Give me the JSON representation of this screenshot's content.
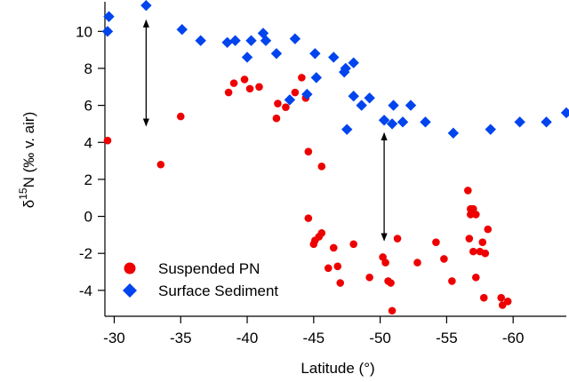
{
  "chart_data": {
    "type": "scatter",
    "title": "",
    "xlabel": "Latitude (°)",
    "ylabel": {
      "prefix": "δ",
      "superscript": "15",
      "suffix": "N (‰ v. air)"
    },
    "xlim": [
      -29.3,
      -64
    ],
    "ylim": [
      -5.4,
      11.6
    ],
    "x_ticks": [
      -30,
      -35,
      -40,
      -45,
      -50,
      -55,
      -60
    ],
    "x_tick_labels": [
      "-30",
      "-35",
      "-40",
      "-45",
      "-50",
      "-55",
      "-60"
    ],
    "y_ticks": [
      -4,
      -2,
      0,
      2,
      4,
      6,
      8,
      10
    ],
    "y_tick_labels": [
      "-4",
      "-2",
      "0",
      "2",
      "4",
      "6",
      "8",
      "10"
    ],
    "grid": false,
    "legend_position": "bottom-left",
    "series": [
      {
        "name": "Suspended PN",
        "marker": "circle",
        "color": "#ee0000",
        "points": [
          [
            -29.5,
            4.1
          ],
          [
            -33.5,
            2.8
          ],
          [
            -35.0,
            5.4
          ],
          [
            -38.6,
            6.7
          ],
          [
            -39.0,
            7.2
          ],
          [
            -39.8,
            7.4
          ],
          [
            -40.2,
            6.9
          ],
          [
            -40.9,
            7.0
          ],
          [
            -42.2,
            5.3
          ],
          [
            -42.3,
            6.1
          ],
          [
            -42.9,
            5.9
          ],
          [
            -43.6,
            6.7
          ],
          [
            -44.1,
            7.5
          ],
          [
            -44.4,
            6.4
          ],
          [
            -44.6,
            3.5
          ],
          [
            -44.6,
            -0.1
          ],
          [
            -45.6,
            2.7
          ],
          [
            -45.0,
            -1.5
          ],
          [
            -45.1,
            -1.3
          ],
          [
            -45.4,
            -1.1
          ],
          [
            -45.6,
            -0.9
          ],
          [
            -46.1,
            -2.8
          ],
          [
            -46.5,
            -1.7
          ],
          [
            -46.8,
            -2.7
          ],
          [
            -47.0,
            -3.6
          ],
          [
            -48.0,
            -1.5
          ],
          [
            -49.2,
            -3.3
          ],
          [
            -50.2,
            -2.2
          ],
          [
            -50.4,
            -2.5
          ],
          [
            -50.6,
            -3.5
          ],
          [
            -50.8,
            -3.6
          ],
          [
            -50.9,
            -5.1
          ],
          [
            -51.3,
            -1.2
          ],
          [
            -52.8,
            -2.5
          ],
          [
            -54.2,
            -1.4
          ],
          [
            -54.8,
            -2.3
          ],
          [
            -55.4,
            -3.5
          ],
          [
            -56.6,
            1.4
          ],
          [
            -56.7,
            -1.2
          ],
          [
            -56.8,
            0.4
          ],
          [
            -56.8,
            0.1
          ],
          [
            -57.0,
            0.4
          ],
          [
            -57.0,
            -1.9
          ],
          [
            -57.2,
            0.1
          ],
          [
            -57.2,
            -3.3
          ],
          [
            -57.5,
            -1.9
          ],
          [
            -57.7,
            -1.4
          ],
          [
            -57.8,
            -4.4
          ],
          [
            -57.9,
            -2.0
          ],
          [
            -58.1,
            -0.7
          ],
          [
            -59.1,
            -4.4
          ],
          [
            -59.2,
            -4.8
          ],
          [
            -59.6,
            -4.6
          ]
        ]
      },
      {
        "name": "Surface Sediment",
        "marker": "diamond",
        "color": "#0044ee",
        "points": [
          [
            -29.6,
            10.8
          ],
          [
            -29.5,
            10.0
          ],
          [
            -32.4,
            11.4
          ],
          [
            -35.1,
            10.1
          ],
          [
            -36.5,
            9.5
          ],
          [
            -38.5,
            9.4
          ],
          [
            -39.1,
            9.5
          ],
          [
            -40.0,
            8.6
          ],
          [
            -40.3,
            9.5
          ],
          [
            -41.2,
            9.9
          ],
          [
            -41.4,
            9.5
          ],
          [
            -42.2,
            8.8
          ],
          [
            -43.2,
            6.3
          ],
          [
            -43.6,
            9.6
          ],
          [
            -44.5,
            6.6
          ],
          [
            -45.1,
            8.8
          ],
          [
            -45.2,
            7.5
          ],
          [
            -46.5,
            8.6
          ],
          [
            -47.3,
            7.8
          ],
          [
            -47.4,
            8.0
          ],
          [
            -47.5,
            4.7
          ],
          [
            -48.0,
            8.3
          ],
          [
            -48.0,
            6.5
          ],
          [
            -48.6,
            6.0
          ],
          [
            -49.2,
            6.4
          ],
          [
            -50.3,
            5.2
          ],
          [
            -50.9,
            5.0
          ],
          [
            -51.0,
            6.0
          ],
          [
            -51.7,
            5.1
          ],
          [
            -52.3,
            6.0
          ],
          [
            -53.4,
            5.1
          ],
          [
            -55.5,
            4.5
          ],
          [
            -58.3,
            4.7
          ],
          [
            -60.5,
            5.1
          ],
          [
            -62.5,
            5.1
          ],
          [
            -64.0,
            5.6
          ]
        ]
      }
    ],
    "annotations": [
      {
        "type": "double-arrow",
        "x": -32.4,
        "y_from": 10.6,
        "y_to": 4.9
      },
      {
        "type": "double-arrow",
        "x": -50.3,
        "y_from": 4.5,
        "y_to": -1.3
      }
    ]
  }
}
